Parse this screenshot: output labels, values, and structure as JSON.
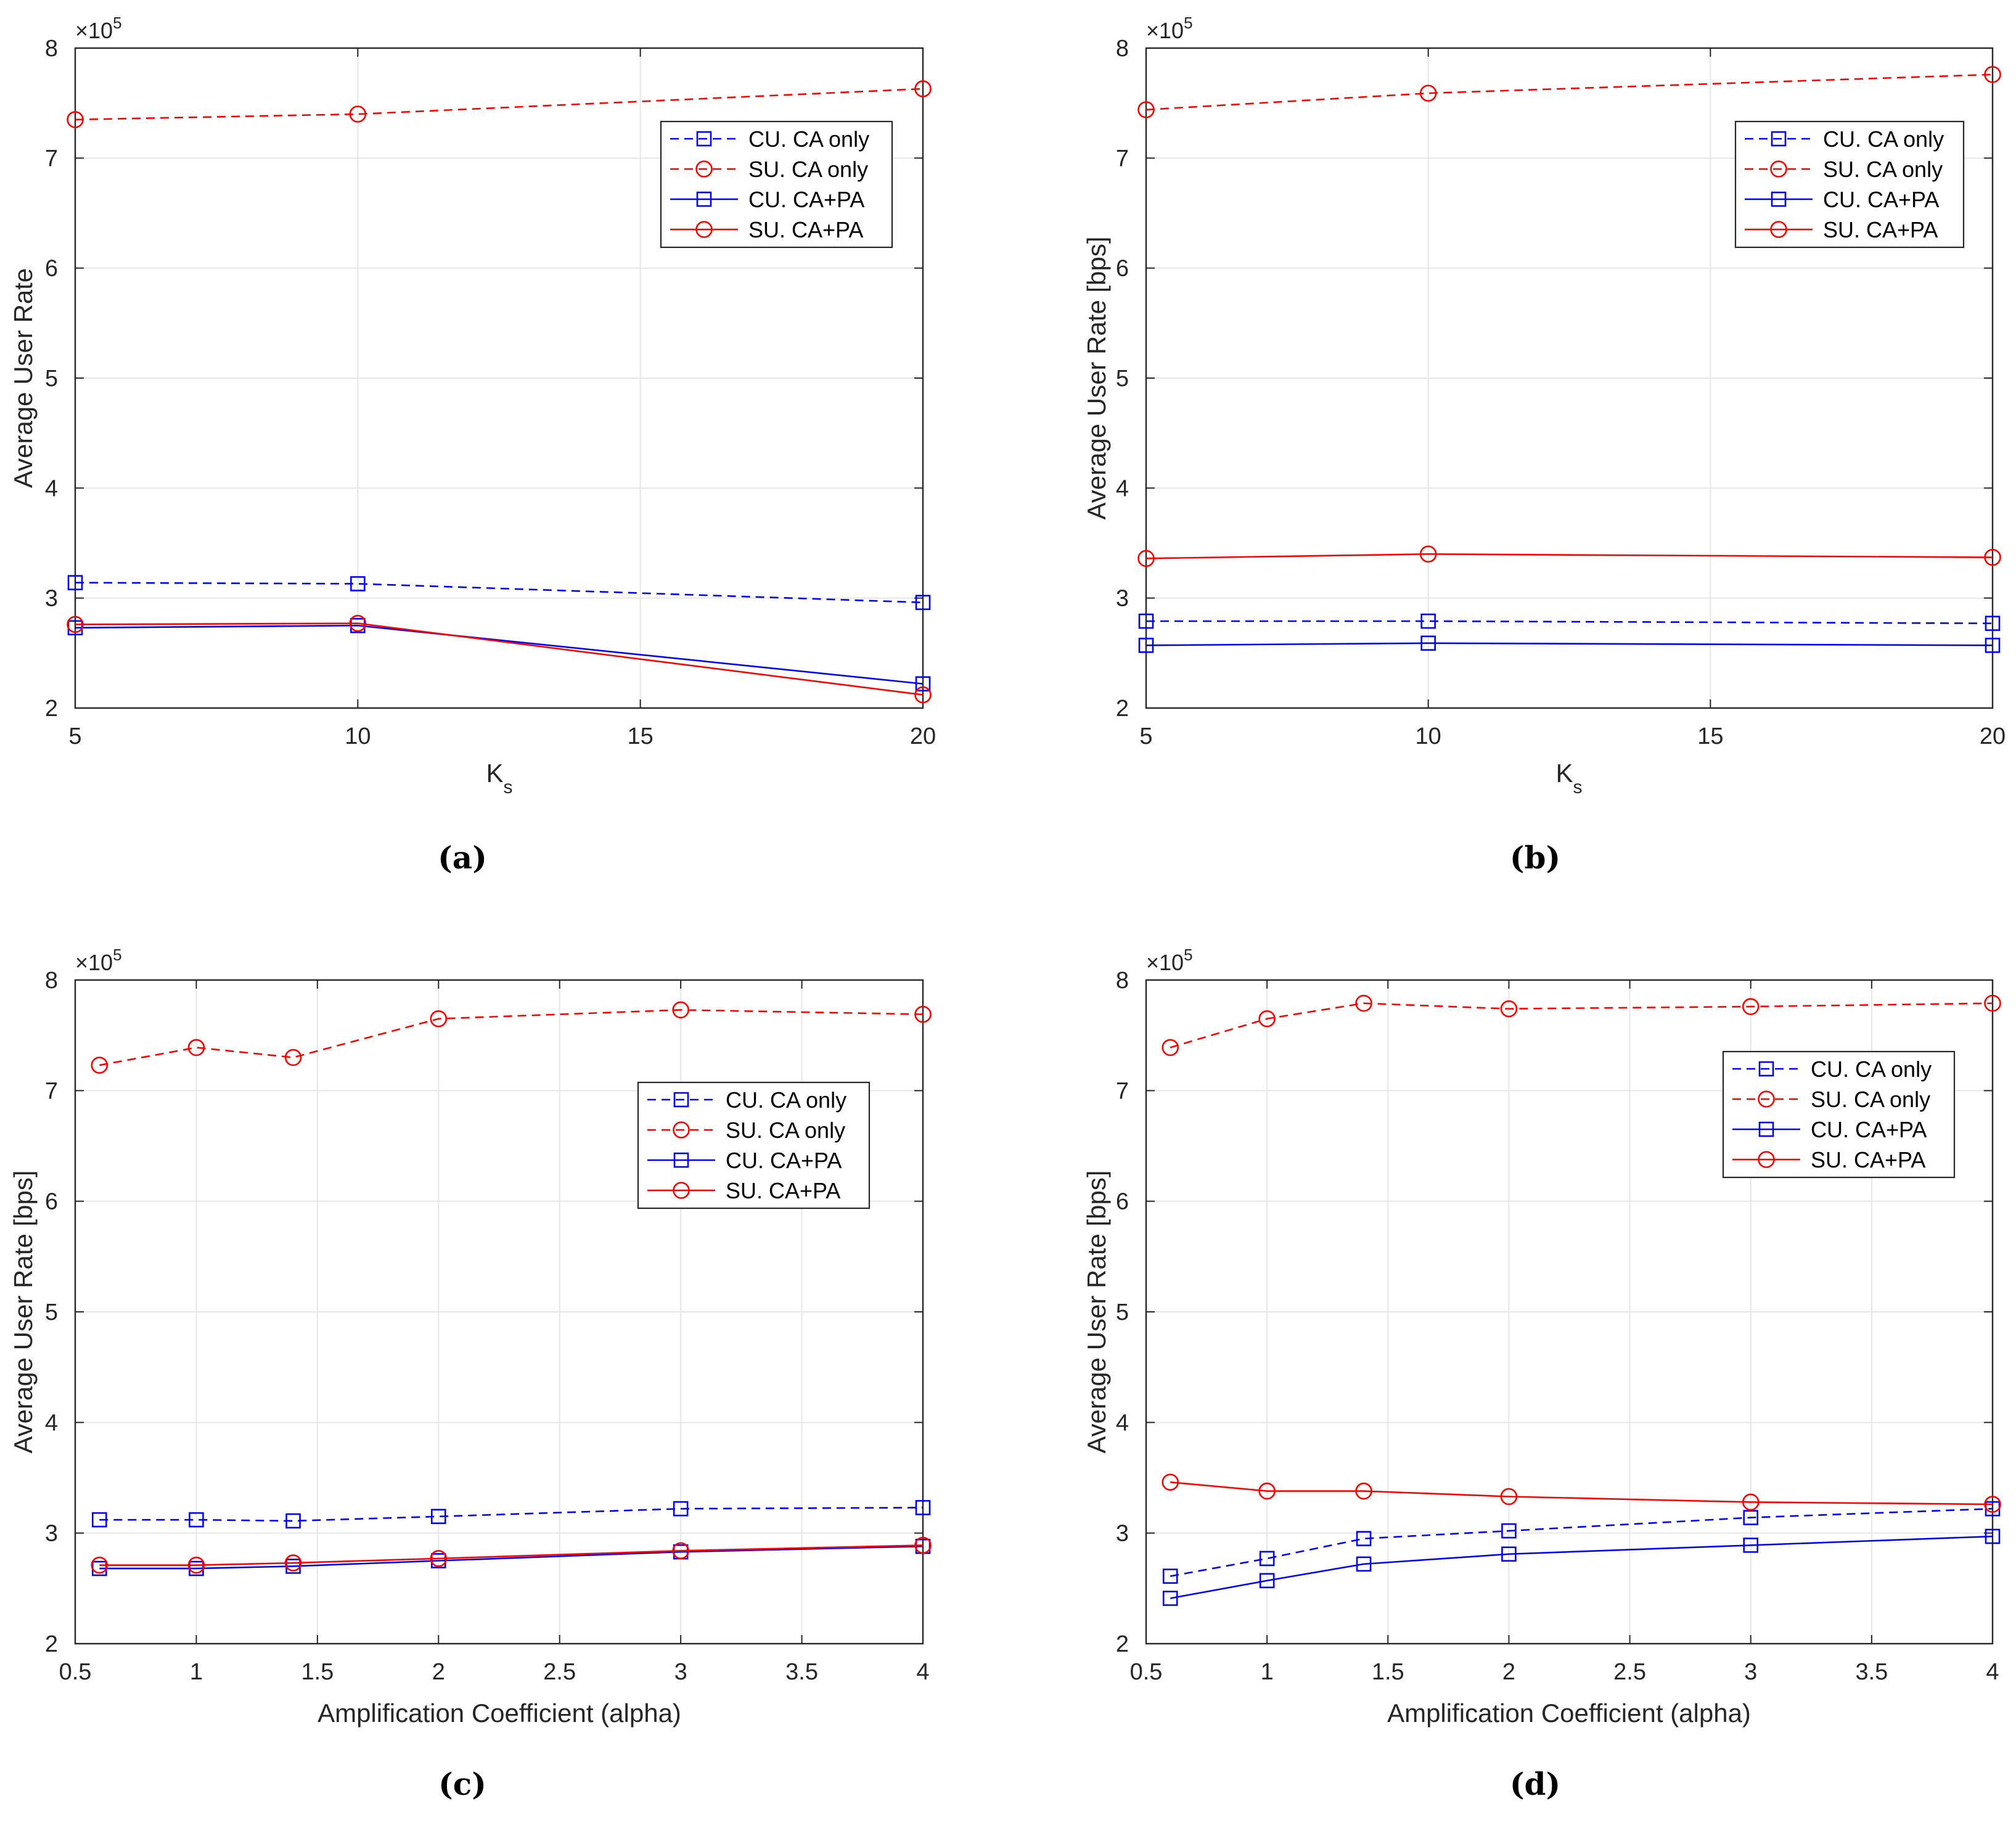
{
  "figure": {
    "panels": [
      {
        "caption": "(a)",
        "legend_position": "top-right"
      },
      {
        "caption": "(b)",
        "legend_position": "top-right"
      },
      {
        "caption": "(c)",
        "legend_position": "top-right"
      },
      {
        "caption": "(d)",
        "legend_position": "top-right"
      }
    ]
  },
  "colors": {
    "cu": "#0000ff",
    "su": "#ff0000",
    "grid": "#e6e6e6",
    "axis": "#262626"
  },
  "chart_data": [
    {
      "type": "line",
      "title": "",
      "xlabel": "K",
      "xlabel_sub": "s",
      "ylabel": "Average User Rate",
      "exponent_base": "×10",
      "exponent_power": "5",
      "xlim": [
        5,
        20
      ],
      "ylim": [
        2,
        8
      ],
      "xticks": [
        5,
        10,
        15,
        20
      ],
      "xtick_labels": [
        "5",
        "10",
        "15",
        "20"
      ],
      "yticks": [
        2,
        3,
        4,
        5,
        6,
        7,
        8
      ],
      "ytick_labels": [
        "2",
        "3",
        "4",
        "5",
        "6",
        "7",
        "8"
      ],
      "x": [
        5,
        10,
        20
      ],
      "series": [
        {
          "name": "CU. CA only",
          "values": [
            3.14,
            3.13,
            2.96
          ],
          "color": "#0000ff",
          "dash": true,
          "marker": "square"
        },
        {
          "name": "SU. CA only",
          "values": [
            7.35,
            7.4,
            7.63
          ],
          "color": "#ff0000",
          "dash": true,
          "marker": "circle"
        },
        {
          "name": "CU. CA+PA",
          "values": [
            2.73,
            2.75,
            2.22
          ],
          "color": "#0000ff",
          "dash": false,
          "marker": "square"
        },
        {
          "name": "SU. CA+PA",
          "values": [
            2.76,
            2.77,
            2.12
          ],
          "color": "#ff0000",
          "dash": false,
          "marker": "circle"
        }
      ]
    },
    {
      "type": "line",
      "title": "",
      "xlabel": "K",
      "xlabel_sub": "s",
      "ylabel": "Average User Rate [bps]",
      "exponent_base": "×10",
      "exponent_power": "5",
      "xlim": [
        5,
        20
      ],
      "ylim": [
        2,
        8
      ],
      "xticks": [
        5,
        10,
        15,
        20
      ],
      "xtick_labels": [
        "5",
        "10",
        "15",
        "20"
      ],
      "yticks": [
        2,
        3,
        4,
        5,
        6,
        7,
        8
      ],
      "ytick_labels": [
        "2",
        "3",
        "4",
        "5",
        "6",
        "7",
        "8"
      ],
      "x": [
        5,
        10,
        20
      ],
      "series": [
        {
          "name": "CU. CA only",
          "values": [
            2.79,
            2.79,
            2.77
          ],
          "color": "#0000ff",
          "dash": true,
          "marker": "square"
        },
        {
          "name": "SU. CA only",
          "values": [
            7.44,
            7.59,
            7.76
          ],
          "color": "#ff0000",
          "dash": true,
          "marker": "circle"
        },
        {
          "name": "CU. CA+PA",
          "values": [
            2.57,
            2.59,
            2.57
          ],
          "color": "#0000ff",
          "dash": false,
          "marker": "square"
        },
        {
          "name": "SU. CA+PA",
          "values": [
            3.36,
            3.4,
            3.37
          ],
          "color": "#ff0000",
          "dash": false,
          "marker": "circle"
        }
      ]
    },
    {
      "type": "line",
      "title": "",
      "xlabel": "Amplification Coefficient (alpha)",
      "xlabel_sub": "",
      "ylabel": "Average User Rate [bps]",
      "exponent_base": "×10",
      "exponent_power": "5",
      "xlim": [
        0.5,
        4
      ],
      "ylim": [
        2,
        8
      ],
      "xticks": [
        0.5,
        1,
        1.5,
        2,
        2.5,
        3,
        3.5,
        4
      ],
      "xtick_labels": [
        "0.5",
        "1",
        "1.5",
        "2",
        "2.5",
        "3",
        "3.5",
        "4"
      ],
      "yticks": [
        2,
        3,
        4,
        5,
        6,
        7,
        8
      ],
      "ytick_labels": [
        "2",
        "3",
        "4",
        "5",
        "6",
        "7",
        "8"
      ],
      "x": [
        0.6,
        1,
        1.4,
        2,
        3,
        4
      ],
      "series": [
        {
          "name": "CU. CA only",
          "values": [
            3.12,
            3.12,
            3.11,
            3.15,
            3.22,
            3.23
          ],
          "color": "#0000ff",
          "dash": true,
          "marker": "square"
        },
        {
          "name": "SU. CA only",
          "values": [
            7.23,
            7.39,
            7.3,
            7.65,
            7.73,
            7.69
          ],
          "color": "#ff0000",
          "dash": true,
          "marker": "circle"
        },
        {
          "name": "CU. CA+PA",
          "values": [
            2.68,
            2.68,
            2.7,
            2.75,
            2.83,
            2.88
          ],
          "color": "#0000ff",
          "dash": false,
          "marker": "square"
        },
        {
          "name": "SU. CA+PA",
          "values": [
            2.71,
            2.71,
            2.73,
            2.77,
            2.84,
            2.89
          ],
          "color": "#ff0000",
          "dash": false,
          "marker": "circle"
        }
      ]
    },
    {
      "type": "line",
      "title": "",
      "xlabel": "Amplification Coefficient (alpha)",
      "xlabel_sub": "",
      "ylabel": "Average User Rate [bps]",
      "exponent_base": "×10",
      "exponent_power": "5",
      "xlim": [
        0.5,
        4
      ],
      "ylim": [
        2,
        8
      ],
      "xticks": [
        0.5,
        1,
        1.5,
        2,
        2.5,
        3,
        3.5,
        4
      ],
      "xtick_labels": [
        "0.5",
        "1",
        "1.5",
        "2",
        "2.5",
        "3",
        "3.5",
        "4"
      ],
      "yticks": [
        2,
        3,
        4,
        5,
        6,
        7,
        8
      ],
      "ytick_labels": [
        "2",
        "3",
        "4",
        "5",
        "6",
        "7",
        "8"
      ],
      "x": [
        0.6,
        1,
        1.4,
        2,
        3,
        4
      ],
      "series": [
        {
          "name": "CU. CA only",
          "values": [
            2.61,
            2.77,
            2.95,
            3.02,
            3.14,
            3.22
          ],
          "color": "#0000ff",
          "dash": true,
          "marker": "square"
        },
        {
          "name": "SU. CA only",
          "values": [
            7.39,
            7.65,
            7.79,
            7.74,
            7.76,
            7.79
          ],
          "color": "#ff0000",
          "dash": true,
          "marker": "circle"
        },
        {
          "name": "CU. CA+PA",
          "values": [
            2.41,
            2.57,
            2.72,
            2.81,
            2.89,
            2.97
          ],
          "color": "#0000ff",
          "dash": false,
          "marker": "square"
        },
        {
          "name": "SU. CA+PA",
          "values": [
            3.46,
            3.38,
            3.38,
            3.33,
            3.28,
            3.26
          ],
          "color": "#ff0000",
          "dash": false,
          "marker": "circle"
        }
      ]
    }
  ]
}
